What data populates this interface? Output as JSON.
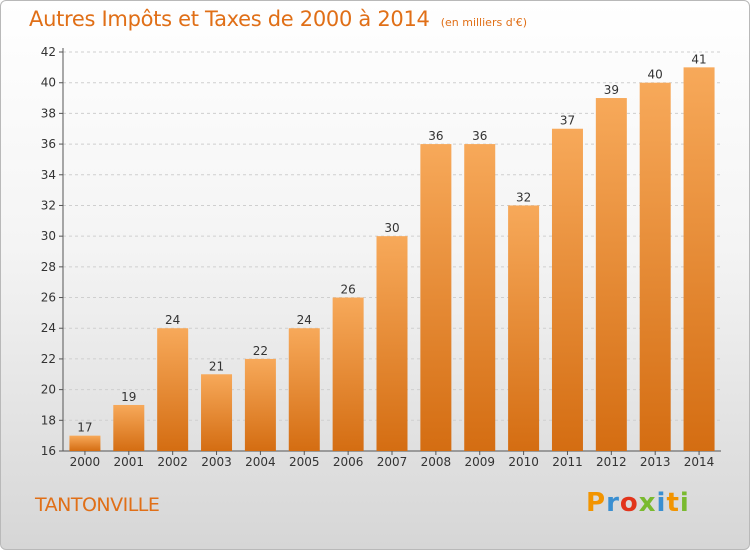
{
  "header": {
    "title": "Autres Impôts et Taxes de 2000 à 2014",
    "unit": "(en milliers d'€)"
  },
  "footer": {
    "commune": "TANTONVILLE",
    "logo_letters": [
      "P",
      "r",
      "o",
      "x",
      "i",
      "t",
      "i"
    ]
  },
  "colors": {
    "bar_light": "#f7a95a",
    "bar_dark": "#d46d12",
    "title": "#e06f17",
    "grid": "#cfcfcf"
  },
  "chart_data": {
    "type": "bar",
    "title": "Autres Impôts et Taxes de 2000 à 2014",
    "subtitle": "(en milliers d'€)",
    "xlabel": "",
    "ylabel": "",
    "categories": [
      "2000",
      "2001",
      "2002",
      "2003",
      "2004",
      "2005",
      "2006",
      "2007",
      "2008",
      "2009",
      "2010",
      "2011",
      "2012",
      "2013",
      "2014"
    ],
    "values": [
      17,
      19,
      24,
      21,
      22,
      24,
      26,
      30,
      36,
      36,
      32,
      37,
      39,
      40,
      41
    ],
    "ylim": [
      16,
      42
    ],
    "yticks": [
      16,
      18,
      20,
      22,
      24,
      26,
      28,
      30,
      32,
      34,
      36,
      38,
      40,
      42
    ],
    "grid": "horizontal dashed",
    "legend": "none"
  }
}
